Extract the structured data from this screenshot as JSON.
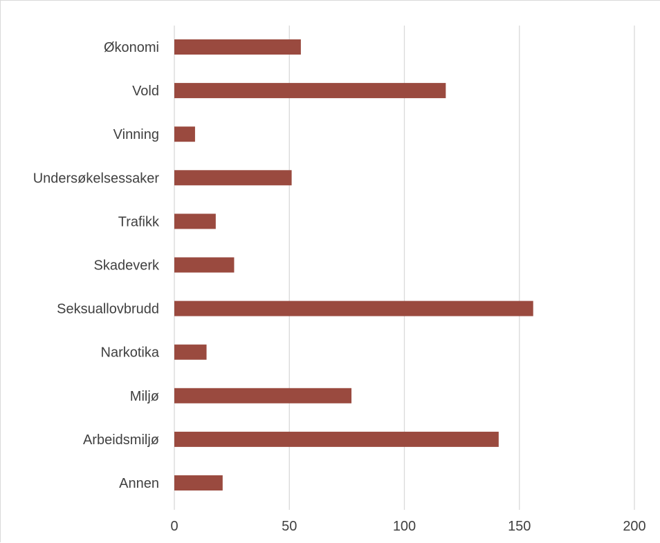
{
  "chart_data": {
    "type": "bar",
    "orientation": "horizontal",
    "title": "",
    "xlabel": "",
    "ylabel": "",
    "categories": [
      "Økonomi",
      "Vold",
      "Vinning",
      "Undersøkelsessaker",
      "Trafikk",
      "Skadeverk",
      "Seksuallovbrudd",
      "Narkotika",
      "Miljø",
      "Arbeidsmiljø",
      "Annen"
    ],
    "values": [
      55,
      118,
      9,
      51,
      18,
      26,
      156,
      14,
      77,
      141,
      21
    ],
    "xlim": [
      0,
      200
    ],
    "xticks": [
      "0",
      "50",
      "100",
      "150",
      "200"
    ],
    "grid": true,
    "legend": "none",
    "bar_color": "#9a4a3f",
    "grid_color": "#d9d9d9",
    "label_color": "#404040"
  }
}
